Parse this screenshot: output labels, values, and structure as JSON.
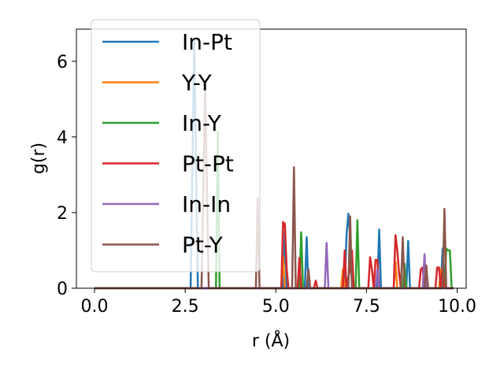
{
  "chart_data": {
    "type": "line",
    "xlabel": "r (Å)",
    "ylabel": "g(r)",
    "xlim": [
      -0.5,
      10.25
    ],
    "ylim": [
      0,
      6.85
    ],
    "xticks": [
      0.0,
      2.5,
      5.0,
      7.5,
      10.0
    ],
    "xtick_labels": [
      "0.0",
      "2.5",
      "5.0",
      "7.5",
      "10.0"
    ],
    "yticks": [
      0,
      2,
      4,
      6
    ],
    "ytick_labels": [
      "0",
      "2",
      "4",
      "6"
    ],
    "grid": false,
    "legend_position": "top-left",
    "x": [
      0.0,
      2.6,
      2.65,
      2.7,
      2.75,
      2.8,
      2.85,
      2.9,
      2.95,
      3.0,
      3.05,
      3.1,
      3.15,
      3.2,
      3.25,
      3.3,
      3.35,
      3.4,
      3.45,
      3.5,
      4.45,
      4.5,
      4.55,
      4.6,
      4.65,
      5.1,
      5.15,
      5.2,
      5.25,
      5.3,
      5.35,
      5.4,
      5.45,
      5.5,
      5.55,
      5.6,
      5.65,
      5.7,
      5.75,
      5.8,
      5.85,
      5.9,
      5.95,
      6.0,
      6.05,
      6.1,
      6.15,
      6.2,
      6.25,
      6.3,
      6.35,
      6.4,
      6.45,
      6.5,
      6.55,
      6.6,
      6.65,
      6.7,
      6.75,
      6.8,
      6.85,
      6.9,
      6.95,
      7.0,
      7.05,
      7.1,
      7.15,
      7.2,
      7.25,
      7.3,
      7.35,
      7.4,
      7.45,
      7.5,
      7.55,
      7.6,
      7.65,
      7.7,
      7.75,
      7.8,
      7.85,
      7.9,
      7.95,
      8.0,
      8.05,
      8.1,
      8.15,
      8.2,
      8.25,
      8.3,
      8.35,
      8.4,
      8.45,
      8.5,
      8.55,
      8.6,
      8.65,
      8.7,
      8.75,
      8.8,
      8.85,
      8.9,
      8.95,
      9.0,
      9.05,
      9.1,
      9.15,
      9.2,
      9.25,
      9.3,
      9.35,
      9.4,
      9.45,
      9.5,
      9.55,
      9.6,
      9.65,
      9.7,
      9.75,
      9.8,
      9.85,
      9.9
    ],
    "series": [
      {
        "name": "In-Pt",
        "color": "#1f77b4",
        "values": [
          0,
          0,
          0,
          3.3,
          6.6,
          3.3,
          0,
          0,
          0,
          0,
          0,
          0,
          0,
          0,
          0,
          0,
          0,
          0,
          0,
          0,
          0,
          0,
          0,
          0,
          0,
          0,
          0,
          0,
          1.5,
          0,
          0,
          0,
          0,
          0,
          0,
          0,
          0,
          0,
          0,
          0,
          1.35,
          0,
          0,
          0,
          0,
          0,
          0,
          0,
          0,
          0,
          0,
          0,
          0,
          0,
          0,
          0,
          0,
          0,
          0,
          0,
          0,
          0,
          1.4,
          1.97,
          1.4,
          0,
          0,
          0,
          0,
          0,
          0,
          0,
          0,
          0,
          0,
          0,
          0,
          0,
          0,
          0,
          1.55,
          0,
          0,
          0,
          0,
          0,
          0,
          0,
          0,
          0,
          0,
          0,
          0,
          0,
          0,
          0,
          1.25,
          0,
          0,
          0,
          0,
          0,
          0,
          0,
          0,
          0,
          0,
          0,
          0,
          0,
          0,
          0,
          0,
          0,
          0,
          1.05,
          0,
          0,
          0,
          0,
          0,
          0
        ]
      },
      {
        "name": "Y-Y",
        "color": "#ff7f0e",
        "values": [
          0,
          0,
          0,
          0,
          0,
          0,
          0,
          0,
          0,
          0,
          0,
          0,
          0,
          0,
          0,
          0,
          0,
          0,
          0,
          0,
          0,
          0,
          0,
          0,
          0,
          0,
          0,
          0.85,
          0,
          0,
          0,
          0,
          0,
          0,
          0,
          0,
          0,
          0,
          0,
          0,
          0,
          0,
          0,
          0,
          0,
          0,
          0,
          0,
          0,
          0,
          0,
          0,
          0,
          0,
          0,
          0,
          0,
          0,
          0,
          0,
          0.5,
          0,
          0,
          0,
          0,
          0,
          0,
          0,
          0,
          0,
          0,
          0,
          0,
          0,
          0,
          0,
          0,
          0,
          0,
          0,
          0,
          0,
          0,
          0,
          0,
          0,
          0,
          0,
          0,
          0.7,
          0,
          0,
          0,
          0,
          0,
          0,
          0,
          0,
          0,
          0,
          0,
          0,
          0,
          0,
          0,
          0,
          0,
          0,
          0,
          0,
          0,
          0,
          0,
          0,
          0.5,
          0,
          0,
          0,
          0,
          0,
          0,
          0
        ]
      },
      {
        "name": "In-Y",
        "color": "#2ca02c",
        "values": [
          0,
          0,
          0,
          0,
          0,
          0,
          0,
          0,
          0,
          0,
          0,
          0,
          0,
          0,
          0,
          0,
          0,
          4.15,
          0,
          0,
          0,
          0,
          0,
          0,
          0,
          0,
          0,
          0,
          0,
          0,
          0,
          0,
          0,
          0,
          0,
          0,
          0,
          1.48,
          0,
          0,
          0,
          0,
          0,
          0,
          0,
          0,
          0,
          0,
          0,
          0,
          0,
          0,
          0,
          0,
          0,
          0,
          0,
          0,
          0,
          0,
          0,
          0,
          0,
          0,
          0,
          0,
          0,
          0,
          1.8,
          0,
          0,
          0,
          0,
          0,
          0,
          0,
          0,
          0,
          0,
          0,
          0,
          0,
          0,
          0,
          0,
          0,
          0,
          0,
          0,
          0,
          0,
          0,
          0,
          0,
          0.65,
          0,
          0,
          0,
          0,
          0,
          0,
          0,
          0,
          0,
          0,
          0,
          0,
          0,
          0,
          0,
          0,
          0,
          0,
          0,
          0,
          0,
          0,
          1.05,
          1.0,
          1.0,
          0,
          0
        ]
      },
      {
        "name": "Pt-Pt",
        "color": "#d62728",
        "values": [
          0,
          0,
          0,
          0,
          0,
          0,
          0,
          0,
          0,
          0,
          0,
          0,
          0,
          0,
          0,
          0,
          0,
          0,
          0,
          0,
          0,
          0,
          0,
          0,
          0,
          0,
          0,
          1.75,
          1.7,
          0.5,
          0,
          0,
          0,
          0,
          0,
          0,
          0.8,
          0,
          0,
          0,
          0,
          0,
          0,
          0,
          0,
          0.2,
          0,
          0,
          0,
          0,
          0,
          0,
          0,
          0,
          0,
          0,
          0,
          0,
          0,
          0,
          0,
          1.0,
          0,
          0.3,
          0.5,
          1.0,
          0,
          0,
          0,
          0,
          0,
          0,
          0,
          0,
          0,
          0.82,
          0.5,
          0,
          0.75,
          0.75,
          0,
          0,
          0,
          0,
          0,
          0,
          0,
          0,
          0,
          1.4,
          1.0,
          0.4,
          0,
          0,
          0,
          0,
          0,
          0,
          0,
          0,
          0,
          0,
          0,
          0.5,
          0.55,
          0,
          0,
          0,
          0,
          0,
          0,
          0,
          0.55,
          0.55,
          0,
          0.55,
          0,
          0,
          0,
          0,
          0,
          0
        ]
      },
      {
        "name": "In-In",
        "color": "#9467bd",
        "values": [
          0,
          0,
          0,
          0,
          0,
          0,
          0,
          0,
          0,
          0,
          0,
          0,
          0,
          0,
          0,
          0,
          0,
          0,
          0,
          0,
          0,
          0,
          0,
          0,
          0,
          0,
          0,
          0,
          0,
          0,
          0,
          0,
          0,
          0,
          0,
          0,
          0,
          0,
          0,
          0,
          0,
          0,
          0,
          0,
          0,
          0,
          0,
          0,
          0,
          0,
          0,
          1.2,
          0,
          0,
          0,
          0,
          0,
          0,
          0,
          0,
          0,
          0,
          0,
          0,
          0,
          0,
          0,
          0,
          0,
          0,
          0,
          0,
          0,
          0,
          0,
          0,
          0,
          0,
          0,
          0.5,
          0,
          0,
          0,
          0,
          0,
          0,
          0,
          0,
          0,
          0,
          0,
          0,
          0,
          0,
          0,
          0,
          0,
          0,
          0,
          0,
          0,
          0,
          0,
          0,
          0,
          0.9,
          0,
          0,
          0,
          0,
          0,
          0,
          0,
          0,
          0,
          0,
          0,
          0,
          0,
          0,
          0,
          0
        ]
      },
      {
        "name": "Pt-Y",
        "color": "#8c564b",
        "values": [
          0,
          0,
          0,
          0,
          0,
          0,
          0,
          0,
          0,
          2.6,
          5.3,
          2.6,
          0,
          0,
          0,
          0,
          0,
          0,
          0,
          0,
          0,
          2.38,
          0,
          0,
          0,
          0,
          0,
          0,
          0,
          0,
          0,
          0,
          0,
          3.2,
          0,
          0,
          0,
          0,
          0,
          0,
          0,
          0.5,
          0,
          0,
          0,
          0,
          0,
          0,
          0,
          0,
          0,
          0,
          0,
          0,
          0,
          0,
          0,
          0,
          0,
          0,
          0,
          0,
          0,
          0,
          1.9,
          0,
          0,
          0,
          0,
          0,
          0,
          0,
          0,
          0,
          0,
          0,
          0,
          0,
          0,
          0,
          0,
          0,
          0,
          0,
          0,
          0,
          0,
          0,
          0,
          0,
          0,
          0,
          0,
          1.35,
          0,
          0,
          0,
          0,
          0,
          0,
          0,
          0,
          0,
          0,
          0,
          0,
          0.6,
          0,
          0,
          0,
          0,
          0,
          0,
          0,
          0,
          0,
          2.1,
          0,
          0,
          0,
          0,
          0
        ]
      }
    ]
  }
}
